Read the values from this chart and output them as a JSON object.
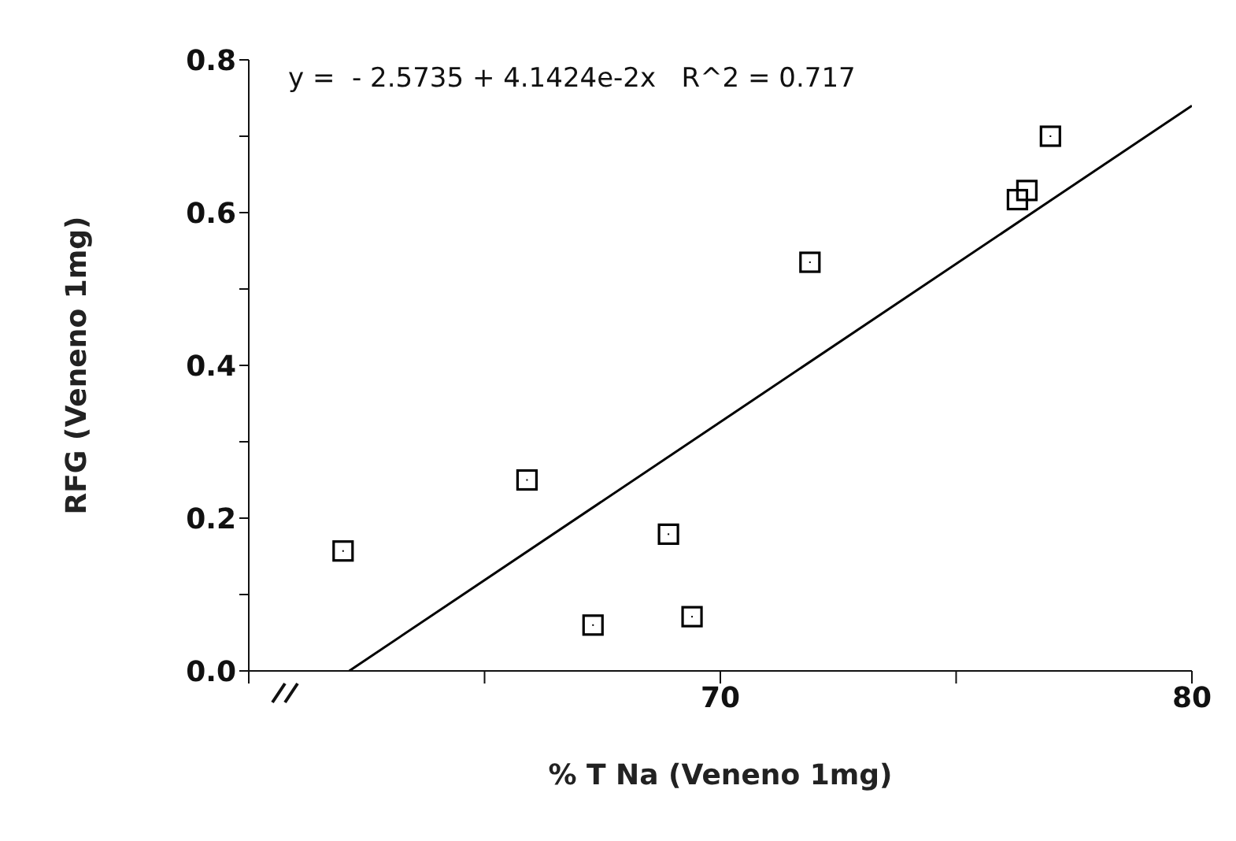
{
  "chart_data": {
    "type": "scatter",
    "xlabel": "% T Na (Veneno 1mg)",
    "ylabel": "RFG (Veneno 1mg)",
    "annotations": [
      "y =  - 2.5735 + 4.1424e-2x   R^2 = 0.717"
    ],
    "xlim": [
      60,
      80
    ],
    "ylim": [
      0,
      0.8
    ],
    "xticks": [
      {
        "value": 60,
        "label": null
      },
      {
        "value": 65,
        "label": null
      },
      70,
      {
        "value": 75,
        "label": null
      },
      80
    ],
    "yticks": [
      {
        "value": 0,
        "label": "0.0"
      },
      {
        "value": 0.1,
        "label": null
      },
      0.2,
      {
        "value": 0.3,
        "label": null
      },
      0.4,
      {
        "value": 0.5,
        "label": null
      },
      0.6,
      {
        "value": 0.7,
        "label": null
      },
      0.8
    ],
    "marker": "square",
    "series": [
      {
        "color": "#000000",
        "x": [
          62.0,
          65.9,
          67.3,
          68.9,
          69.4,
          71.9,
          76.3,
          76.5,
          77.0
        ],
        "values": [
          0.157,
          0.25,
          0.06,
          0.179,
          0.071,
          0.535,
          0.617,
          0.629,
          0.7
        ]
      },
      {
        "type": "line",
        "color": "#000000",
        "line_style": "solid",
        "marker": "none",
        "x": [
          62.13,
          80
        ],
        "values": [
          0,
          0.74
        ]
      }
    ]
  }
}
